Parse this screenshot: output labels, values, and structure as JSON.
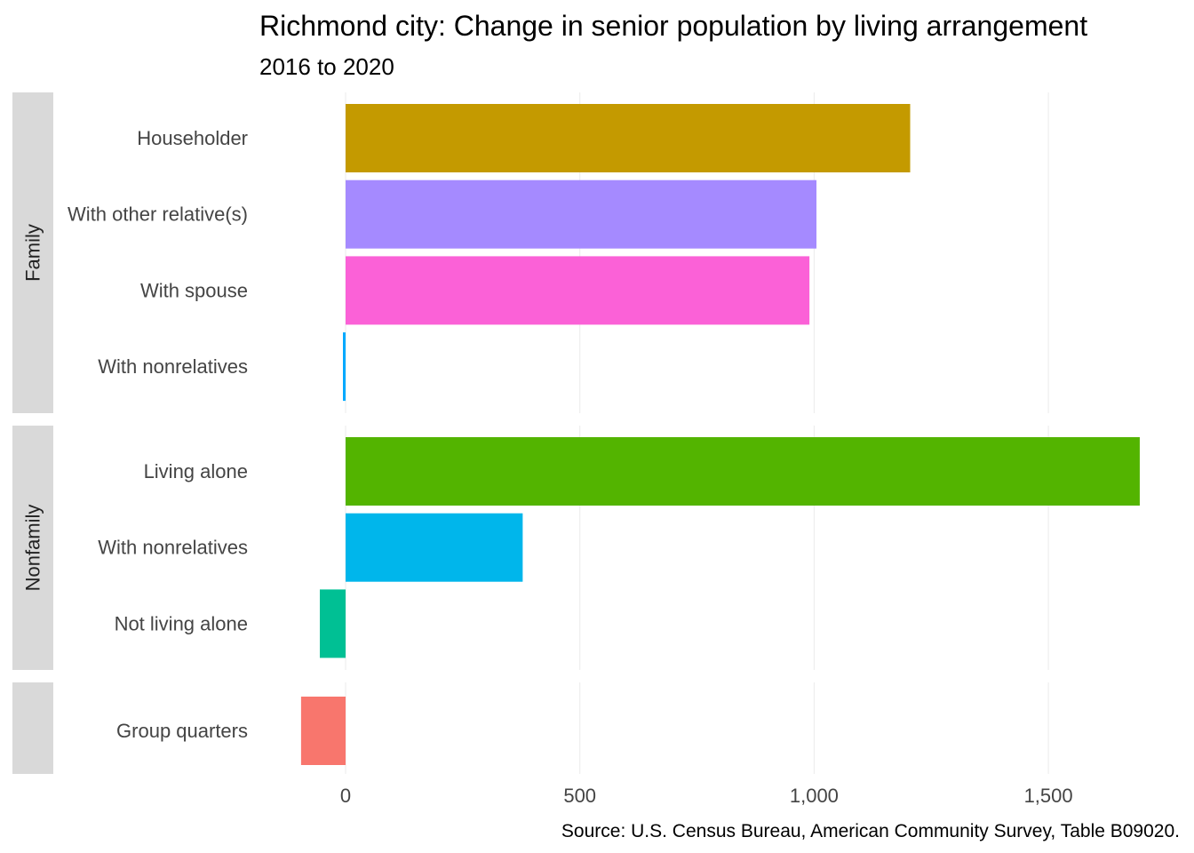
{
  "chart_data": {
    "type": "bar",
    "orientation": "horizontal",
    "title": "Richmond city: Change in senior population by living arrangement",
    "subtitle": "2016 to 2020",
    "caption": "Source: U.S. Census Bureau, American Community Survey, Table B09020.",
    "xlim": [
      -130,
      1700
    ],
    "xticks": [
      0,
      500,
      1000,
      1500
    ],
    "xtick_labels": [
      "0",
      "500",
      "1,000",
      "1,500"
    ],
    "grid": true,
    "legend": "none",
    "facets": [
      {
        "name": "Family",
        "bars": [
          {
            "label": "Householder",
            "value": 1205,
            "color": "#C49A00"
          },
          {
            "label": "With other relative(s)",
            "value": 1005,
            "color": "#A58AFF"
          },
          {
            "label": "With spouse",
            "value": 990,
            "color": "#FB61D7"
          },
          {
            "label": "With nonrelatives",
            "value": -4,
            "color": "#00A9FF"
          }
        ]
      },
      {
        "name": "Nonfamily",
        "bars": [
          {
            "label": "Living alone",
            "value": 1695,
            "color": "#53B400"
          },
          {
            "label": "With nonrelatives",
            "value": 378,
            "color": "#00B6EB"
          },
          {
            "label": "Not living alone",
            "value": -55,
            "color": "#00C094"
          }
        ]
      },
      {
        "name": "",
        "bars": [
          {
            "label": "Group quarters",
            "value": -95,
            "color": "#F8766D"
          }
        ]
      }
    ]
  }
}
